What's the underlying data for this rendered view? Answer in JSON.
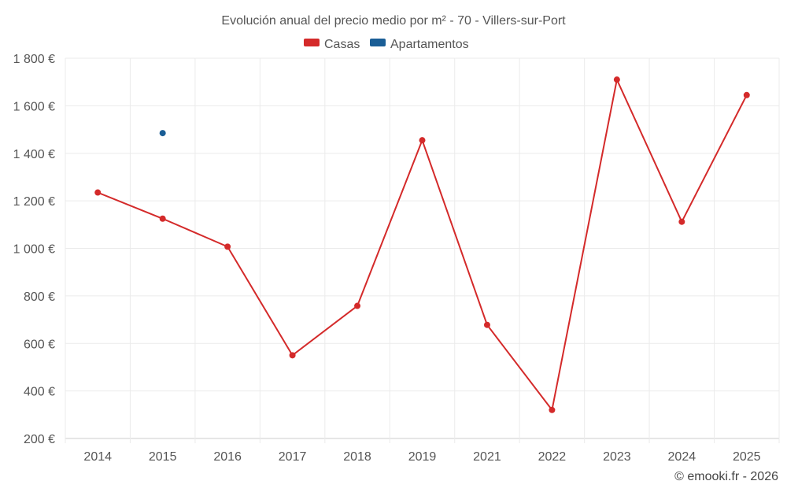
{
  "chart_data": {
    "type": "line",
    "title": "Evolución anual del precio medio por m² - 70 - Villers-sur-Port",
    "categories": [
      "2014",
      "2015",
      "2016",
      "2017",
      "2018",
      "2019",
      "2021",
      "2022",
      "2023",
      "2024",
      "2025"
    ],
    "series": [
      {
        "name": "Casas",
        "color": "#d42a2a",
        "values": [
          1235,
          1125,
          1007,
          550,
          758,
          1455,
          678,
          320,
          1710,
          1112,
          1645
        ]
      },
      {
        "name": "Apartamentos",
        "color": "#1a5e96",
        "values": [
          null,
          1485,
          null,
          null,
          null,
          null,
          null,
          null,
          null,
          null,
          null
        ]
      }
    ],
    "y_ticks": [
      "200 €",
      "400 €",
      "600 €",
      "800 €",
      "1 000 €",
      "1 200 €",
      "1 400 €",
      "1 600 €",
      "1 800 €"
    ],
    "ylim": [
      200,
      1800
    ],
    "xlabel": "",
    "ylabel": "",
    "grid": true,
    "legend_position": "top-center"
  },
  "credit": "© emooki.fr - 2026"
}
